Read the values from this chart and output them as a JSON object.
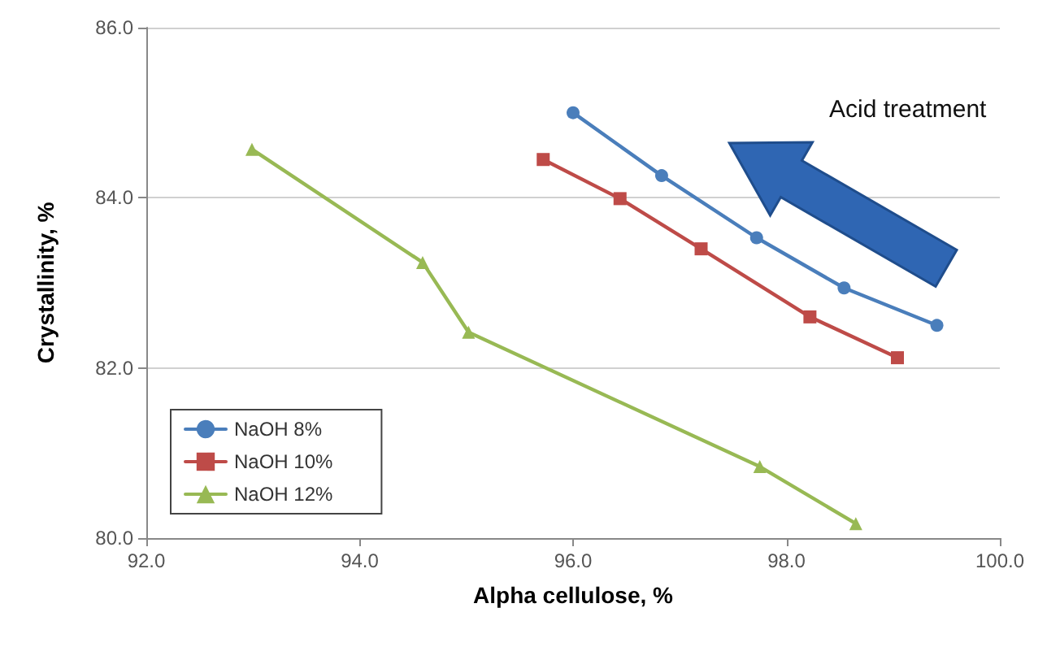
{
  "chart_data": {
    "type": "line",
    "xlabel": "Alpha cellulose, %",
    "ylabel": "Crystallinity, %",
    "xlim": [
      92,
      100
    ],
    "xticks": [
      {
        "value": 92,
        "label": "92.0"
      },
      {
        "value": 94,
        "label": "94.0"
      },
      {
        "value": 96,
        "label": "96.0"
      },
      {
        "value": 98,
        "label": "98.0"
      },
      {
        "value": 100,
        "label": "100.0"
      }
    ],
    "ylim": [
      80,
      86
    ],
    "yticks": [
      {
        "value": 80,
        "label": "80.0"
      },
      {
        "value": 82,
        "label": "82.0"
      },
      {
        "value": 84,
        "label": "84.0"
      },
      {
        "value": 86,
        "label": "86.0"
      }
    ],
    "grid": "y",
    "legend": "bottom left",
    "line_style": "solid",
    "annotations": [
      "Acid treatment"
    ],
    "series": [
      {
        "name": "NaOH 8%",
        "color": "#4a7ebb",
        "marker": "circle",
        "x": [
          96.0,
          96.83,
          97.72,
          98.54,
          99.41
        ],
        "values": [
          85.0,
          84.26,
          83.53,
          82.94,
          82.5
        ]
      },
      {
        "name": "NaOH 10%",
        "color": "#be4b48",
        "marker": "square",
        "x": [
          95.72,
          96.44,
          97.2,
          98.22,
          99.04
        ],
        "values": [
          84.45,
          83.99,
          83.4,
          82.6,
          82.12
        ]
      },
      {
        "name": "NaOH 12%",
        "color": "#98b954",
        "marker": "triangle",
        "x": [
          92.99,
          94.59,
          95.02,
          97.75,
          98.65
        ],
        "values": [
          84.57,
          83.24,
          82.42,
          80.84,
          80.17
        ]
      }
    ]
  }
}
